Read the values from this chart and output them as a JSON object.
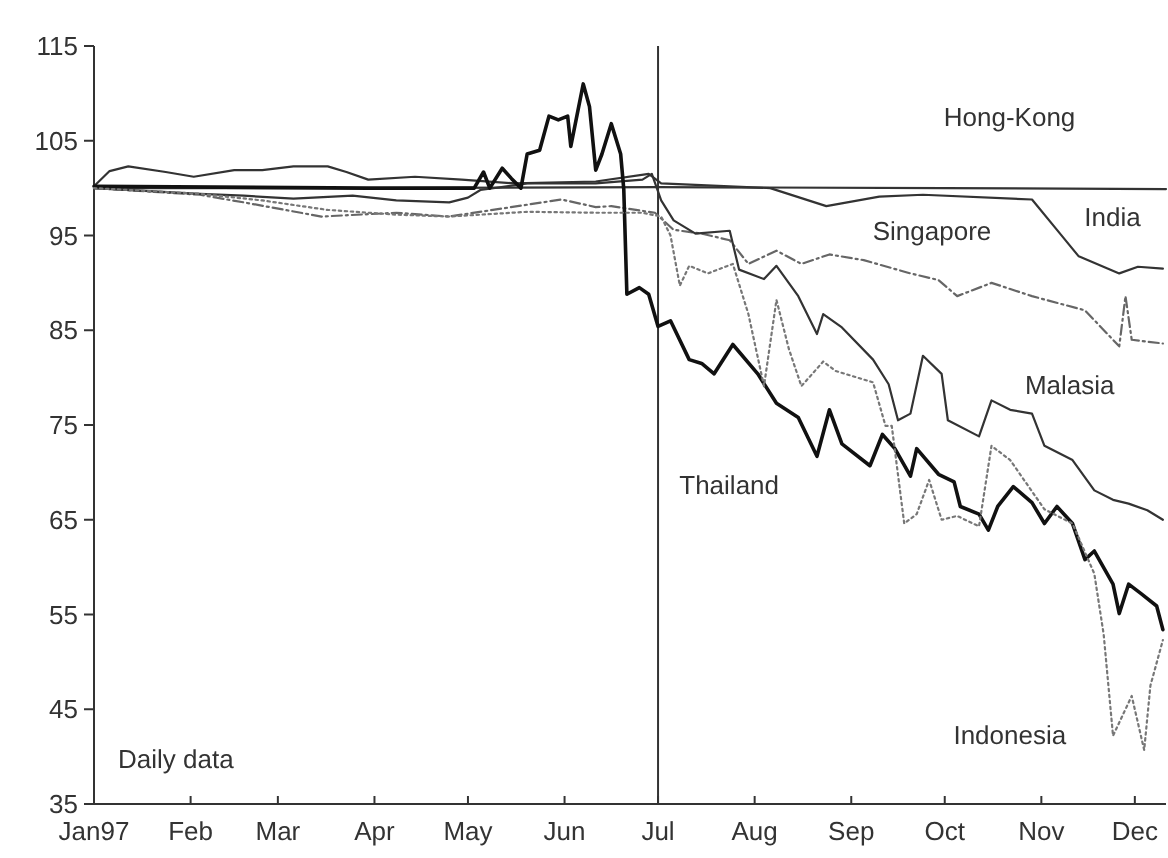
{
  "chart_data": {
    "type": "line",
    "xlim": [
      "1997-01-01",
      "1997-12-11"
    ],
    "ylim": [
      35,
      115
    ],
    "yticks": [
      35,
      45,
      55,
      65,
      75,
      85,
      95,
      105,
      115
    ],
    "xticks": [
      {
        "value": "1997-01-01",
        "label": "Jan97"
      },
      {
        "value": "1997-02-01",
        "label": "Feb"
      },
      {
        "value": "1997-03-01",
        "label": "Mar"
      },
      {
        "value": "1997-04-01",
        "label": "Apr"
      },
      {
        "value": "1997-05-01",
        "label": "May"
      },
      {
        "value": "1997-06-01",
        "label": "Jun"
      },
      {
        "value": "1997-07-01",
        "label": "Jul"
      },
      {
        "value": "1997-08-01",
        "label": "Aug"
      },
      {
        "value": "1997-09-01",
        "label": "Sep"
      },
      {
        "value": "1997-10-01",
        "label": "Oct"
      },
      {
        "value": "1997-11-01",
        "label": "Nov"
      },
      {
        "value": "1997-12-01",
        "label": "Dec"
      }
    ],
    "grid": false,
    "marker": "none",
    "annotations": [
      "Daily data"
    ],
    "ref_lines": [
      {
        "axis": "x",
        "value": "1997-07-01",
        "label": null,
        "color": "#333333"
      }
    ],
    "series": [
      {
        "name": "Hong-Kong",
        "color": "#333333",
        "line_style": "solid",
        "x": [
          "1997-01-01",
          "1997-04-01",
          "1997-07-01",
          "1997-10-01",
          "1997-12-11"
        ],
        "values": [
          100,
          100,
          100.1,
          100,
          99.9
        ]
      },
      {
        "name": "India",
        "color": "#333333",
        "line_style": "solid",
        "x": [
          "1997-01-01",
          "1997-01-06",
          "1997-01-12",
          "1997-01-24",
          "1997-02-02",
          "1997-02-15",
          "1997-02-24",
          "1997-03-06",
          "1997-03-17",
          "1997-03-23",
          "1997-03-30",
          "1997-04-14",
          "1997-04-29",
          "1997-05-16",
          "1997-06-11",
          "1997-06-28",
          "1997-07-02",
          "1997-08-06",
          "1997-08-24",
          "1997-09-10",
          "1997-09-24",
          "1997-10-29",
          "1997-11-07",
          "1997-11-13",
          "1997-11-26",
          "1997-12-02",
          "1997-12-10"
        ],
        "values": [
          100.2,
          101.8,
          102.3,
          101.7,
          101.2,
          101.9,
          101.9,
          102.3,
          102.3,
          101.7,
          100.9,
          101.2,
          100.9,
          100.5,
          100.7,
          101.5,
          100.5,
          100,
          98.1,
          99.1,
          99.3,
          98.8,
          95.2,
          92.8,
          91,
          91.7,
          91.5
        ]
      },
      {
        "name": "Singapore",
        "color": "#666666",
        "line_style": "dashed",
        "x": [
          "1997-01-01",
          "1997-02-04",
          "1997-02-18",
          "1997-03-15",
          "1997-04-08",
          "1997-04-25",
          "1997-05-09",
          "1997-05-31",
          "1997-06-11",
          "1997-06-16",
          "1997-06-30",
          "1997-07-06",
          "1997-07-15",
          "1997-07-24",
          "1997-07-30",
          "1997-08-08",
          "1997-08-16",
          "1997-08-25",
          "1997-09-05",
          "1997-09-20",
          "1997-09-29",
          "1997-10-05",
          "1997-10-16",
          "1997-10-29",
          "1997-11-15",
          "1997-11-26",
          "1997-11-28",
          "1997-11-30",
          "1997-12-10"
        ],
        "values": [
          100,
          99.3,
          98.5,
          97,
          97.4,
          97,
          97.7,
          98.8,
          98,
          98.1,
          97.4,
          95.6,
          95.2,
          94.5,
          92,
          93.4,
          92,
          93,
          92.4,
          91,
          90.3,
          88.6,
          90,
          88.6,
          87.1,
          83.3,
          88.6,
          84,
          83.6
        ]
      },
      {
        "name": "Malasia",
        "color": "#333333",
        "line_style": "solid",
        "x": [
          "1997-01-01",
          "1997-02-04",
          "1997-02-18",
          "1997-03-06",
          "1997-03-25",
          "1997-04-08",
          "1997-04-25",
          "1997-05-01",
          "1997-05-05",
          "1997-05-20",
          "1997-06-11",
          "1997-06-26",
          "1997-06-29",
          "1997-07-02",
          "1997-07-06",
          "1997-07-13",
          "1997-07-24",
          "1997-07-27",
          "1997-08-04",
          "1997-08-08",
          "1997-08-15",
          "1997-08-21",
          "1997-08-23",
          "1997-08-29",
          "1997-09-08",
          "1997-09-13",
          "1997-09-16",
          "1997-09-20",
          "1997-09-24",
          "1997-09-30",
          "1997-10-02",
          "1997-10-12",
          "1997-10-16",
          "1997-10-22",
          "1997-10-29",
          "1997-11-02",
          "1997-11-11",
          "1997-11-18",
          "1997-11-24",
          "1997-11-29",
          "1997-12-05",
          "1997-12-10"
        ],
        "values": [
          100,
          99.4,
          99.2,
          98.9,
          99.2,
          98.7,
          98.5,
          99,
          99.8,
          100.5,
          100.5,
          100.9,
          101.5,
          98.7,
          96.6,
          95.2,
          95.5,
          91.4,
          90.4,
          91.8,
          88.6,
          84.6,
          86.7,
          85.3,
          81.9,
          79.3,
          75.5,
          76.2,
          82.3,
          80.4,
          75.5,
          73.8,
          77.6,
          76.6,
          76.2,
          72.8,
          71.3,
          68.1,
          67.1,
          66.7,
          66,
          65
        ]
      },
      {
        "name": "Thailand",
        "color": "#111111",
        "line_style": "solid",
        "x": [
          "1997-01-01",
          "1997-03-30",
          "1997-05-03",
          "1997-05-06",
          "1997-05-08",
          "1997-05-12",
          "1997-05-15",
          "1997-05-18",
          "1997-05-20",
          "1997-05-24",
          "1997-05-27",
          "1997-05-30",
          "1997-06-02",
          "1997-06-03",
          "1997-06-07",
          "1997-06-09",
          "1997-06-11",
          "1997-06-13",
          "1997-06-16",
          "1997-06-19",
          "1997-06-20",
          "1997-06-21",
          "1997-06-25",
          "1997-06-28",
          "1997-07-01",
          "1997-07-05",
          "1997-07-11",
          "1997-07-15",
          "1997-07-19",
          "1997-07-25",
          "1997-08-02",
          "1997-08-08",
          "1997-08-15",
          "1997-08-21",
          "1997-08-25",
          "1997-08-29",
          "1997-09-07",
          "1997-09-11",
          "1997-09-15",
          "1997-09-20",
          "1997-09-22",
          "1997-09-29",
          "1997-10-04",
          "1997-10-06",
          "1997-10-12",
          "1997-10-15",
          "1997-10-18",
          "1997-10-23",
          "1997-10-29",
          "1997-11-02",
          "1997-11-06",
          "1997-11-11",
          "1997-11-15",
          "1997-11-18",
          "1997-11-24",
          "1997-11-26",
          "1997-11-29",
          "1997-12-03",
          "1997-12-08",
          "1997-12-10"
        ],
        "values": [
          100.2,
          100,
          100,
          101.7,
          100,
          102.1,
          101,
          100,
          103.6,
          104,
          107.6,
          107.2,
          107.6,
          104.4,
          111,
          108.6,
          101.9,
          103.6,
          106.8,
          103.6,
          99.9,
          88.8,
          89.5,
          88.8,
          85.4,
          86,
          81.9,
          81.5,
          80.4,
          83.5,
          80.4,
          77.3,
          75.8,
          71.7,
          76.6,
          73,
          70.7,
          74,
          72.5,
          69.6,
          72.5,
          69.8,
          69,
          66.4,
          65.6,
          63.9,
          66.4,
          68.5,
          66.8,
          64.6,
          66.4,
          64.6,
          60.8,
          61.7,
          58.2,
          55.1,
          58.2,
          57.2,
          55.9,
          53.4
        ]
      },
      {
        "name": "Indonesia",
        "color": "#777777",
        "line_style": "dotted",
        "x": [
          "1997-01-01",
          "1997-02-04",
          "1997-02-24",
          "1997-03-17",
          "1997-04-08",
          "1997-04-25",
          "1997-05-20",
          "1997-06-11",
          "1997-06-26",
          "1997-07-02",
          "1997-07-05",
          "1997-07-08",
          "1997-07-11",
          "1997-07-17",
          "1997-07-25",
          "1997-07-30",
          "1997-08-04",
          "1997-08-08",
          "1997-08-12",
          "1997-08-16",
          "1997-08-23",
          "1997-08-27",
          "1997-09-08",
          "1997-09-12",
          "1997-09-14",
          "1997-09-18",
          "1997-09-22",
          "1997-09-26",
          "1997-09-30",
          "1997-10-05",
          "1997-10-12",
          "1997-10-16",
          "1997-10-22",
          "1997-11-02",
          "1997-11-11",
          "1997-11-18",
          "1997-11-21",
          "1997-11-24",
          "1997-11-30",
          "1997-12-04",
          "1997-12-06",
          "1997-12-10"
        ],
        "values": [
          100,
          99.4,
          98.7,
          97.7,
          97.2,
          97,
          97.5,
          97.4,
          97.4,
          97,
          95,
          89.7,
          91.8,
          91,
          92,
          86.7,
          79.1,
          88.2,
          83,
          79.1,
          81.7,
          80.7,
          79.5,
          74.9,
          74.9,
          64.6,
          65.6,
          69.2,
          65,
          65.4,
          64.3,
          72.8,
          71.3,
          66.1,
          64.6,
          59.3,
          52.9,
          42.2,
          46.4,
          40.7,
          47.5,
          52.3
        ]
      }
    ]
  }
}
